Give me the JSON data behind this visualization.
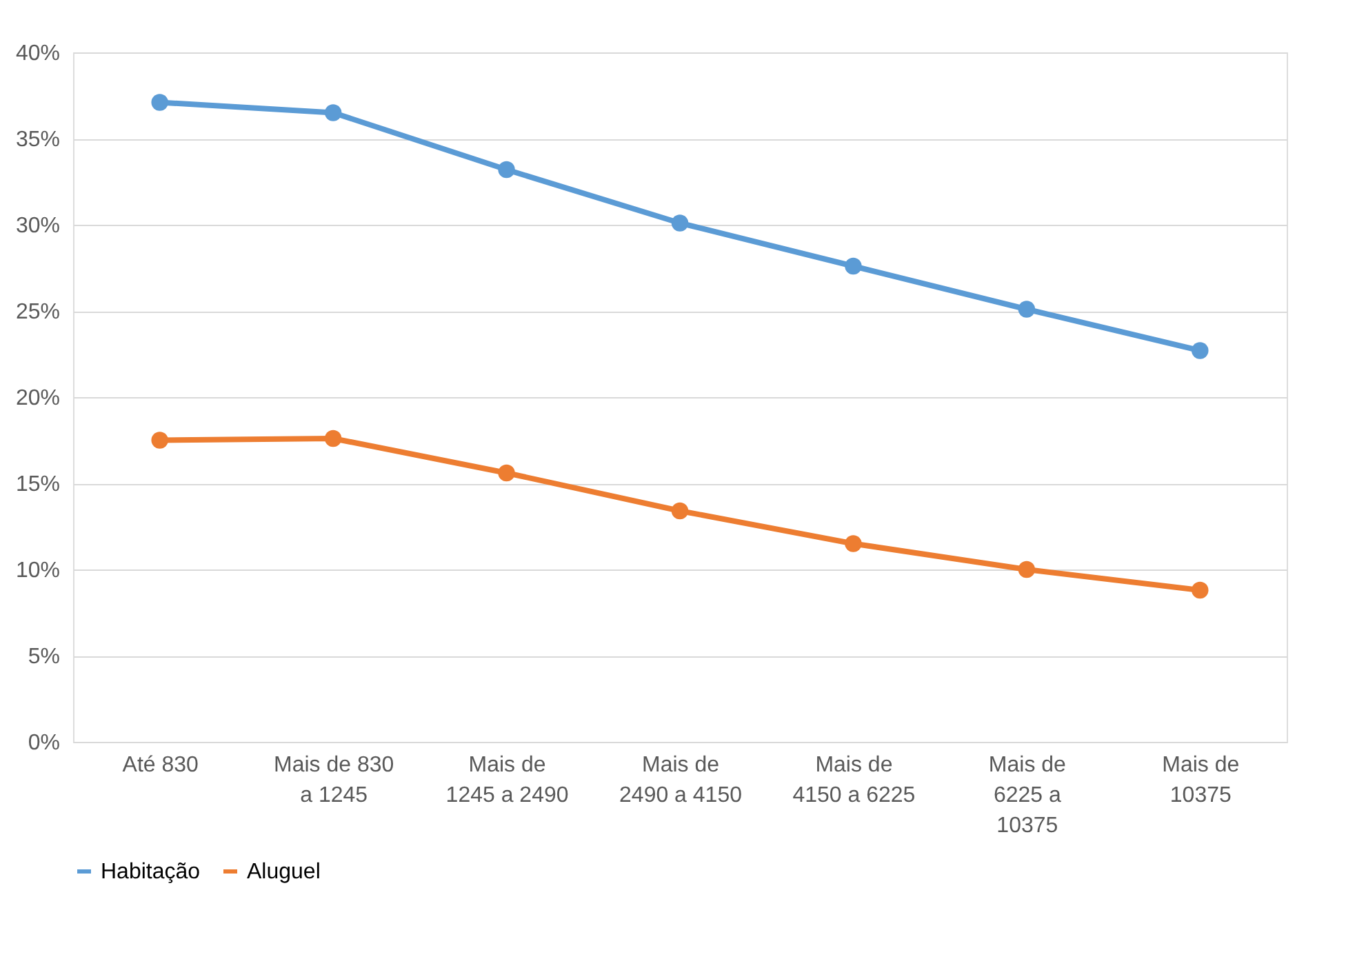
{
  "chart_data": {
    "type": "line",
    "categories": [
      "Até 830",
      "Mais de 830 a 1245",
      "Mais de 1245 a 2490",
      "Mais de 2490 a 4150",
      "Mais de 4150 a 6225",
      "Mais de 6225 a 10375",
      "Mais de 10375"
    ],
    "series": [
      {
        "name": "Habitação",
        "color": "#5b9bd5",
        "values": [
          37.1,
          36.5,
          33.2,
          30.1,
          27.6,
          25.1,
          22.7
        ]
      },
      {
        "name": "Aluguel",
        "color": "#ed7d31",
        "values": [
          17.5,
          17.6,
          15.6,
          13.4,
          11.5,
          10.0,
          8.8
        ]
      }
    ],
    "ylim": [
      0,
      40
    ],
    "yticks": [
      {
        "value": 0,
        "label": "0%"
      },
      {
        "value": 5,
        "label": "5%"
      },
      {
        "value": 10,
        "label": "10%"
      },
      {
        "value": 15,
        "label": "15%"
      },
      {
        "value": 20,
        "label": "20%"
      },
      {
        "value": 25,
        "label": "25%"
      },
      {
        "value": 30,
        "label": "30%"
      },
      {
        "value": 35,
        "label": "35%"
      },
      {
        "value": 40,
        "label": "40%"
      }
    ],
    "grid": "y",
    "legend": "bottom",
    "marker": "circle",
    "line_style": "solid"
  }
}
